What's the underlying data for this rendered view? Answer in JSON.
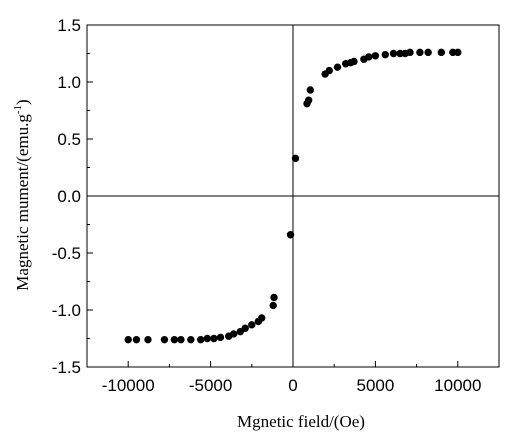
{
  "chart_data": {
    "type": "scatter",
    "xlabel": "Mgnetic field/(Oe)",
    "ylabel": {
      "main": "Magnetic mument/(emu.g",
      "sup": "-1",
      "close": ")"
    },
    "xlim": [
      -12500,
      12500
    ],
    "ylim": [
      -1.5,
      1.5
    ],
    "x_ticks": [
      -10000,
      -5000,
      0,
      5000,
      10000
    ],
    "x_tick_labels": [
      "-10000",
      "-5000",
      "0",
      "5000",
      "10000"
    ],
    "y_ticks": [
      -1.5,
      -1.0,
      -0.5,
      0.0,
      0.5,
      1.0,
      1.5
    ],
    "y_tick_labels": [
      "-1.5",
      "-1.0",
      "-0.5",
      "0.0",
      "0.5",
      "1.0",
      "1.5"
    ],
    "grid": false,
    "legend": "none",
    "marker_color": "#000000",
    "zero_lines": true,
    "points": [
      [
        -10000,
        -1.26
      ],
      [
        -9500,
        -1.26
      ],
      [
        -8800,
        -1.26
      ],
      [
        -7800,
        -1.26
      ],
      [
        -7200,
        -1.26
      ],
      [
        -6800,
        -1.26
      ],
      [
        -6200,
        -1.26
      ],
      [
        -5600,
        -1.26
      ],
      [
        -5200,
        -1.25
      ],
      [
        -4800,
        -1.25
      ],
      [
        -4400,
        -1.24
      ],
      [
        -3900,
        -1.23
      ],
      [
        -3600,
        -1.21
      ],
      [
        -3200,
        -1.19
      ],
      [
        -2900,
        -1.16
      ],
      [
        -2500,
        -1.13
      ],
      [
        -2100,
        -1.1
      ],
      [
        -1900,
        -1.07
      ],
      [
        -1200,
        -0.96
      ],
      [
        -1150,
        -0.89
      ],
      [
        -150,
        -0.34
      ],
      [
        150,
        0.33
      ],
      [
        850,
        0.81
      ],
      [
        950,
        0.84
      ],
      [
        1050,
        0.93
      ],
      [
        1950,
        1.07
      ],
      [
        2200,
        1.1
      ],
      [
        2700,
        1.13
      ],
      [
        3200,
        1.16
      ],
      [
        3500,
        1.17
      ],
      [
        3700,
        1.18
      ],
      [
        4300,
        1.2
      ],
      [
        4600,
        1.22
      ],
      [
        5000,
        1.23
      ],
      [
        5600,
        1.24
      ],
      [
        6100,
        1.25
      ],
      [
        6500,
        1.25
      ],
      [
        6800,
        1.25
      ],
      [
        7100,
        1.26
      ],
      [
        7700,
        1.26
      ],
      [
        8200,
        1.26
      ],
      [
        9000,
        1.26
      ],
      [
        9700,
        1.26
      ],
      [
        10000,
        1.26
      ]
    ]
  }
}
